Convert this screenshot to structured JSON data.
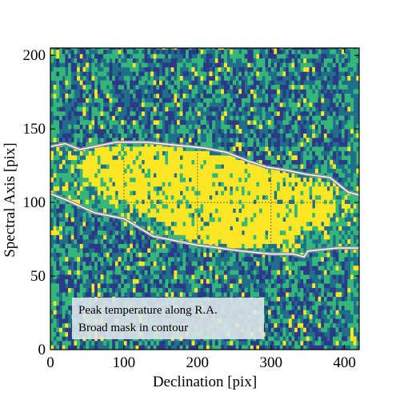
{
  "chart_data": {
    "type": "heatmap",
    "xlabel": "Declination [pix]",
    "ylabel": "Spectral Axis [pix]",
    "xlim": [
      0,
      420
    ],
    "ylim": [
      0,
      205
    ],
    "xticks": [
      0,
      100,
      200,
      300,
      400
    ],
    "yticks": [
      0,
      50,
      100,
      150,
      200
    ],
    "grid": true,
    "grid_lines_x": [
      100,
      200,
      300
    ],
    "grid_lines_y": [
      100
    ],
    "annotation": {
      "lines": [
        "Peak temperature along R.A.",
        "Broad mask in contour"
      ],
      "placement": "bottom-left"
    },
    "colormap": [
      "#2b3a86",
      "#1f6f8b",
      "#35b779",
      "#fde725"
    ],
    "contour_color": "#8a8f96",
    "mask_upper_edge": [
      [
        0,
        138
      ],
      [
        20,
        140
      ],
      [
        40,
        136
      ],
      [
        90,
        141
      ],
      [
        130,
        141
      ],
      [
        150,
        140
      ],
      [
        210,
        137
      ],
      [
        240,
        134
      ],
      [
        270,
        128
      ],
      [
        295,
        124
      ],
      [
        320,
        122
      ],
      [
        350,
        119
      ],
      [
        380,
        117
      ],
      [
        405,
        107
      ],
      [
        420,
        105
      ]
    ],
    "mask_lower_edge": [
      [
        0,
        106
      ],
      [
        25,
        101
      ],
      [
        60,
        93
      ],
      [
        100,
        89
      ],
      [
        140,
        77
      ],
      [
        200,
        71
      ],
      [
        260,
        67
      ],
      [
        300,
        65
      ],
      [
        330,
        65
      ],
      [
        345,
        63
      ],
      [
        350,
        67
      ],
      [
        370,
        68
      ],
      [
        390,
        69
      ],
      [
        420,
        69
      ]
    ],
    "bright_core": [
      [
        40,
        125
      ],
      [
        60,
        138
      ],
      [
        120,
        138
      ],
      [
        180,
        136
      ],
      [
        240,
        132
      ],
      [
        290,
        125
      ],
      [
        340,
        117
      ],
      [
        380,
        110
      ],
      [
        395,
        100
      ],
      [
        380,
        88
      ],
      [
        340,
        78
      ],
      [
        300,
        71
      ],
      [
        260,
        69
      ],
      [
        220,
        72
      ],
      [
        180,
        78
      ],
      [
        140,
        90
      ],
      [
        100,
        100
      ],
      [
        70,
        107
      ],
      [
        50,
        116
      ]
    ]
  }
}
